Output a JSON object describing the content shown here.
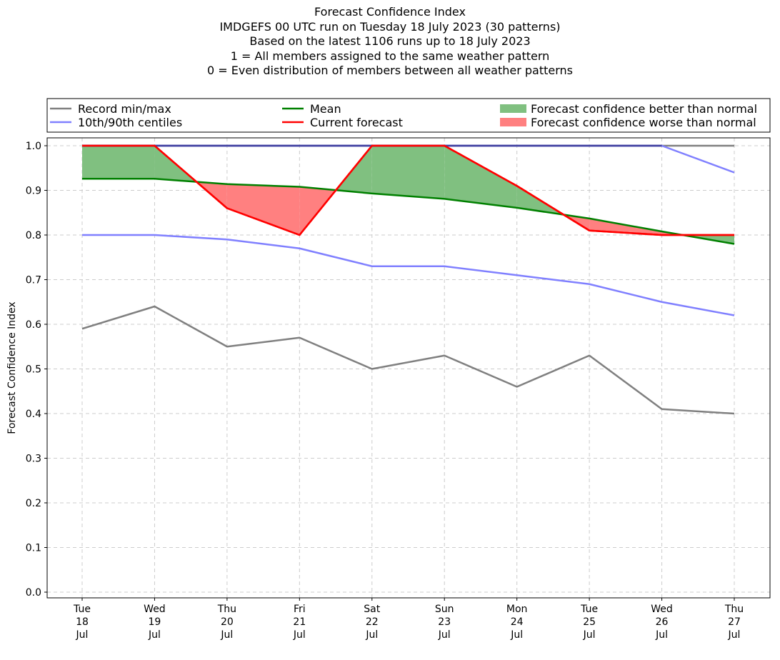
{
  "chart_data": {
    "type": "line",
    "title_lines": [
      "Forecast Confidence Index",
      "IMDGEFS 00 UTC run on Tuesday 18 July 2023 (30 patterns)",
      "Based on the latest 1106 runs up to 18 July 2023",
      "1 = All members assigned to the same weather pattern",
      "0 = Even distribution of members between all weather patterns"
    ],
    "ylabel": "Forecast Confidence Index",
    "xlabel": "",
    "ylim": [
      0.0,
      1.0
    ],
    "yticks": [
      "0.0",
      "0.1",
      "0.2",
      "0.3",
      "0.4",
      "0.5",
      "0.6",
      "0.7",
      "0.8",
      "0.9",
      "1.0"
    ],
    "categories": [
      [
        "Tue",
        "18",
        "Jul"
      ],
      [
        "Wed",
        "19",
        "Jul"
      ],
      [
        "Thu",
        "20",
        "Jul"
      ],
      [
        "Fri",
        "21",
        "Jul"
      ],
      [
        "Sat",
        "22",
        "Jul"
      ],
      [
        "Sun",
        "23",
        "Jul"
      ],
      [
        "Mon",
        "24",
        "Jul"
      ],
      [
        "Tue",
        "25",
        "Jul"
      ],
      [
        "Wed",
        "26",
        "Jul"
      ],
      [
        "Thu",
        "27",
        "Jul"
      ]
    ],
    "grid": true,
    "legend_position": "top",
    "series": [
      {
        "name": "Record min/max",
        "role": "record_max",
        "color": "#808080",
        "values": [
          1.0,
          1.0,
          1.0,
          1.0,
          1.0,
          1.0,
          1.0,
          1.0,
          1.0,
          1.0
        ]
      },
      {
        "name": "Record min/max",
        "role": "record_min",
        "color": "#808080",
        "values": [
          0.59,
          0.64,
          0.55,
          0.57,
          0.5,
          0.53,
          0.46,
          0.53,
          0.41,
          0.4
        ]
      },
      {
        "name": "10th/90th centiles",
        "role": "p90",
        "color": "#8080ff",
        "values": [
          1.0,
          1.0,
          1.0,
          1.0,
          1.0,
          1.0,
          1.0,
          1.0,
          1.0,
          0.94
        ]
      },
      {
        "name": "10th/90th centiles",
        "role": "p10",
        "color": "#8080ff",
        "values": [
          0.8,
          0.8,
          0.79,
          0.77,
          0.73,
          0.73,
          0.71,
          0.69,
          0.65,
          0.62
        ]
      },
      {
        "name": "Mean",
        "role": "mean",
        "color": "#008000",
        "values": [
          0.926,
          0.926,
          0.914,
          0.908,
          0.893,
          0.881,
          0.861,
          0.837,
          0.808,
          0.78
        ]
      },
      {
        "name": "Current forecast",
        "role": "current",
        "color": "#ff0000",
        "values": [
          1.0,
          1.0,
          0.86,
          0.8,
          1.0,
          1.0,
          0.91,
          0.81,
          0.8,
          0.8
        ]
      }
    ],
    "legend": [
      {
        "label": "Record min/max",
        "kind": "line",
        "color": "#808080"
      },
      {
        "label": "10th/90th centiles",
        "kind": "line",
        "color": "#8080ff"
      },
      {
        "label": "Mean",
        "kind": "line",
        "color": "#008000"
      },
      {
        "label": "Current forecast",
        "kind": "line",
        "color": "#ff0000"
      },
      {
        "label": "Forecast confidence better than normal",
        "kind": "patch",
        "color": "#80c080"
      },
      {
        "label": "Forecast confidence worse than normal",
        "kind": "patch",
        "color": "#ff8080"
      }
    ],
    "fill_colors": {
      "better": "#80c080",
      "worse": "#ff8080"
    }
  }
}
